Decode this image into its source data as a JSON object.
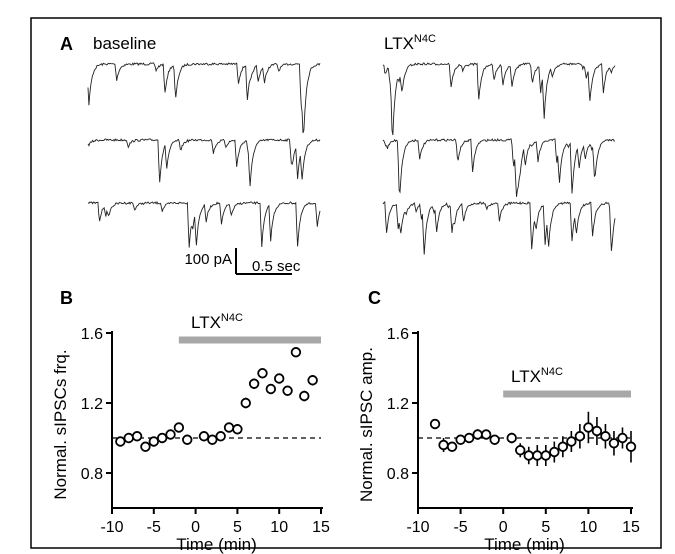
{
  "figure": {
    "panel_a": {
      "letter": "A",
      "baseline_label": "baseline",
      "drug_label": "LTX",
      "drug_label_sup": "N4C",
      "scale_amp": "100 pA",
      "scale_time": "0.5 sec"
    },
    "drug_bar_label": "LTX",
    "drug_bar_sup": "N4C"
  },
  "chart_data": [
    {
      "type": "scatter",
      "panel": "B",
      "xlabel": "Time (min)",
      "ylabel": "Normal. sIPSCs frq.",
      "xlim": [
        -10,
        15
      ],
      "ylim": [
        0.6,
        1.6
      ],
      "xticks": [
        "-10",
        "-5",
        "0",
        "5",
        "10",
        "15"
      ],
      "yticks": [
        "0.8",
        "1.2",
        "1.6"
      ],
      "baseline_y": 1.0,
      "drug_period": [
        -2,
        15
      ],
      "series": [
        {
          "x": [
            -9,
            -8,
            -7,
            -6,
            -5,
            -4,
            -3,
            -2,
            -1,
            1,
            2,
            3,
            4,
            5,
            6,
            7,
            8,
            9,
            10,
            11,
            12,
            13,
            14
          ],
          "y": [
            0.98,
            1.0,
            1.01,
            0.95,
            0.98,
            1.0,
            1.02,
            1.06,
            0.99,
            1.01,
            0.99,
            1.01,
            1.06,
            1.05,
            1.2,
            1.31,
            1.37,
            1.28,
            1.34,
            1.27,
            1.49,
            1.24,
            1.33
          ],
          "err": [
            0.02,
            0.02,
            0.02,
            0.02,
            0.02,
            0.02,
            0.02,
            0.02,
            0.02,
            0.02,
            0.02,
            0.02,
            0.02,
            0.03,
            0.03,
            0.03,
            0.02,
            0.02,
            0.02,
            0.02,
            0.02,
            0.03,
            0.03
          ]
        }
      ]
    },
    {
      "type": "scatter",
      "panel": "C",
      "xlabel": "Time (min)",
      "ylabel": "Normal. sIPSC amp.",
      "xlim": [
        -10,
        15
      ],
      "ylim": [
        0.6,
        1.6
      ],
      "xticks": [
        "-10",
        "-5",
        "0",
        "5",
        "10",
        "15"
      ],
      "yticks": [
        "0.8",
        "1.2",
        "1.6"
      ],
      "baseline_y": 1.0,
      "drug_period": [
        0,
        15
      ],
      "series": [
        {
          "x": [
            -8,
            -7,
            -6,
            -5,
            -4,
            -3,
            -2,
            -1,
            1,
            2,
            3,
            4,
            5,
            6,
            7,
            8,
            9,
            10,
            11,
            12,
            13,
            14,
            15
          ],
          "y": [
            1.08,
            0.96,
            0.95,
            0.99,
            1.0,
            1.02,
            1.02,
            0.99,
            1.0,
            0.93,
            0.9,
            0.9,
            0.9,
            0.92,
            0.95,
            0.98,
            1.01,
            1.06,
            1.04,
            1.01,
            0.97,
            1.0,
            0.95
          ],
          "err": [
            0.02,
            0.04,
            0.02,
            0.02,
            0.02,
            0.03,
            0.02,
            0.02,
            0.03,
            0.04,
            0.05,
            0.06,
            0.06,
            0.06,
            0.06,
            0.06,
            0.07,
            0.09,
            0.08,
            0.07,
            0.07,
            0.06,
            0.09
          ]
        }
      ]
    }
  ]
}
